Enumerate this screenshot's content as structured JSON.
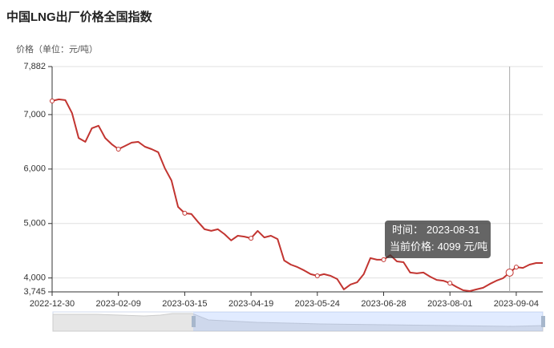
{
  "chart_data": {
    "type": "line",
    "title": "中国LNG出厂价格全国指数",
    "y_axis_label": "价格（单位：元/吨）",
    "categories": [
      "2022-12-30",
      null,
      null,
      null,
      null,
      null,
      null,
      null,
      null,
      null,
      "2023-02-09",
      null,
      null,
      null,
      null,
      null,
      null,
      null,
      null,
      null,
      "2023-03-15",
      null,
      null,
      null,
      null,
      null,
      null,
      null,
      null,
      null,
      "2023-04-19",
      null,
      null,
      null,
      null,
      null,
      null,
      null,
      null,
      null,
      "2023-05-24",
      null,
      null,
      null,
      null,
      null,
      null,
      null,
      null,
      null,
      "2023-06-28",
      null,
      null,
      null,
      null,
      null,
      null,
      null,
      null,
      null,
      "2023-08-01",
      null,
      null,
      null,
      null,
      null,
      null,
      null,
      null,
      null,
      "2023-09-04",
      null,
      null,
      null,
      null
    ],
    "values": [
      7250,
      7280,
      7265,
      7030,
      6570,
      6500,
      6750,
      6795,
      6570,
      6455,
      6365,
      6425,
      6485,
      6500,
      6410,
      6365,
      6310,
      6015,
      5790,
      5305,
      5190,
      5175,
      5030,
      4895,
      4865,
      4895,
      4805,
      4690,
      4775,
      4760,
      4730,
      4865,
      4745,
      4775,
      4715,
      4320,
      4245,
      4200,
      4140,
      4070,
      4040,
      4070,
      4040,
      3980,
      3790,
      3880,
      3920,
      4070,
      4365,
      4335,
      4335,
      4420,
      4305,
      4290,
      4100,
      4085,
      4100,
      4025,
      3965,
      3950,
      3905,
      3835,
      3775,
      3760,
      3790,
      3820,
      3890,
      3950,
      3995,
      4099,
      4200,
      4185,
      4245,
      4275,
      4275
    ],
    "color": "#c23531",
    "ylim": [
      3745,
      7882
    ],
    "yticks": [
      {
        "value": 3745,
        "label": "3,745"
      },
      {
        "value": 4000,
        "label": "4,000"
      },
      {
        "value": 5000,
        "label": "5,000"
      },
      {
        "value": 6000,
        "label": "6,000"
      },
      {
        "value": 7000,
        "label": "7,000"
      },
      {
        "value": 7882,
        "label": "7,882"
      }
    ],
    "grid": true,
    "tooltip": {
      "time_label": "时间：",
      "date": "2023-08-31",
      "price_label": "当前价格:",
      "value": 4099,
      "unit": "元/吨"
    }
  }
}
